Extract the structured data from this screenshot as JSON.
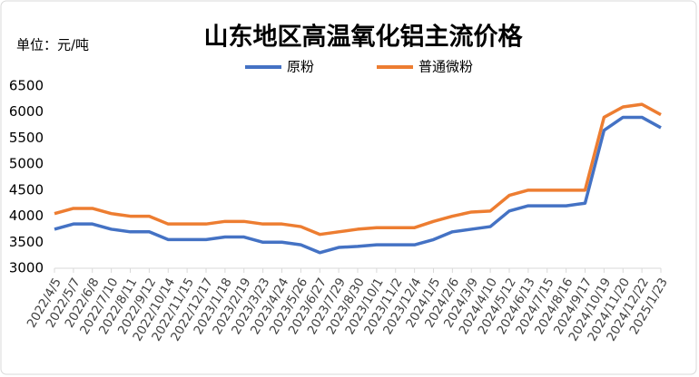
{
  "chart_data": {
    "type": "line",
    "title": "山东地区高温氧化铝主流价格",
    "y_label": "单位：元/吨",
    "categories": [
      "2022/4/5",
      "2022/5/7",
      "2022/6/8",
      "2022/7/10",
      "2022/8/11",
      "2022/9/12",
      "2022/10/14",
      "2022/11/15",
      "2022/12/17",
      "2023/1/18",
      "2023/2/19",
      "2023/3/23",
      "2023/4/24",
      "2023/5/26",
      "2023/6/27",
      "2023/7/29",
      "2023/8/30",
      "2023/10/1",
      "2023/11/2",
      "2023/12/4",
      "2024/1/5",
      "2024/2/6",
      "2024/3/9",
      "2024/4/10",
      "2024/5/12",
      "2024/6/13",
      "2024/7/15",
      "2024/8/16",
      "2024/9/17",
      "2024/10/19",
      "2024/11/20",
      "2024/12/22",
      "2025/1/23"
    ],
    "series": [
      {
        "name": "原粉",
        "color": "#4472c4",
        "values": [
          3750,
          3850,
          3850,
          3750,
          3700,
          3700,
          3550,
          3550,
          3550,
          3600,
          3600,
          3500,
          3500,
          3450,
          3300,
          3400,
          3420,
          3450,
          3450,
          3450,
          3550,
          3700,
          3750,
          3800,
          4100,
          4200,
          4200,
          4200,
          4250,
          5650,
          5900,
          5900,
          5700
        ]
      },
      {
        "name": "普通微粉",
        "color": "#ed7d31",
        "values": [
          4050,
          4150,
          4150,
          4050,
          4000,
          4000,
          3850,
          3850,
          3850,
          3900,
          3900,
          3850,
          3850,
          3800,
          3650,
          3700,
          3750,
          3780,
          3780,
          3780,
          3900,
          4000,
          4080,
          4100,
          4400,
          4500,
          4500,
          4500,
          4500,
          5900,
          6100,
          6150,
          5950
        ]
      }
    ],
    "ylim": [
      3000,
      6500
    ],
    "yticks": [
      3000,
      3500,
      4000,
      4500,
      5000,
      5500,
      6000,
      6500
    ],
    "grid": false,
    "legend": "top"
  }
}
